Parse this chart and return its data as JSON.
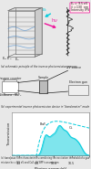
{
  "bg_color": "#e8e8e8",
  "panel_bg": "#ffffff",
  "cyan_color": "#00ccdd",
  "pink_color": "#ee1199",
  "blue_color": "#4488cc",
  "gray_color": "#777777",
  "dark_color": "#222222",
  "light_blue": "#aaddee",
  "title_a": "(a) schematic principle of the inverse photoemission process",
  "title_b": "(b) experimental inverse photoemission device in \"bandometer\" mode",
  "title_c": "(c) bandpass filter characteristics combining the excitation threshold of a gas mixture hν = 9.5 eV and CaF₂ UV BPF transmission"
}
